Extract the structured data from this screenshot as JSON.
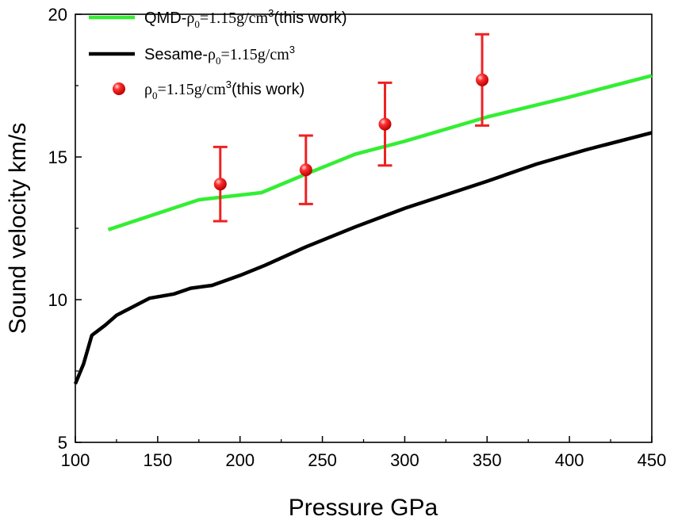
{
  "chart_data": {
    "type": "line",
    "xlabel": "Pressure GPa",
    "ylabel": "Sound velocity km/s",
    "xlim": [
      100,
      450
    ],
    "ylim": [
      5,
      20
    ],
    "x_ticks": [
      100,
      150,
      200,
      250,
      300,
      350,
      400,
      450
    ],
    "y_ticks": [
      5,
      10,
      15,
      20
    ],
    "grid": false,
    "legend_position": "top-left",
    "series": [
      {
        "name": "QMD-ρ0=1.15g/cm3(this work)",
        "legend": {
          "prefix": "QMD-",
          "rho": "ρ",
          "sub": "0",
          "mid": "=1.15g/cm",
          "sup": "3",
          "suffix": "(this work)"
        },
        "color": "#33ee33",
        "kind": "line",
        "x": [
          120,
          175,
          213,
          240,
          270,
          300,
          350,
          400,
          450
        ],
        "y": [
          12.45,
          13.5,
          13.75,
          14.4,
          15.1,
          15.55,
          16.4,
          17.1,
          17.85
        ]
      },
      {
        "name": "Sesame-ρ0=1.15g/cm3",
        "legend": {
          "prefix": "Sesame-",
          "rho": "ρ",
          "sub": "0",
          "mid": "=1.15g/cm",
          "sup": "3",
          "suffix": ""
        },
        "color": "#000000",
        "kind": "line",
        "x": [
          100,
          105,
          110,
          118,
          125,
          135,
          145,
          160,
          170,
          183,
          200,
          215,
          240,
          270,
          300,
          350,
          380,
          410,
          450
        ],
        "y": [
          7.05,
          7.75,
          8.75,
          9.1,
          9.45,
          9.75,
          10.05,
          10.2,
          10.4,
          10.5,
          10.85,
          11.2,
          11.85,
          12.55,
          13.2,
          14.15,
          14.75,
          15.25,
          15.85
        ]
      },
      {
        "name": "ρ0=1.15g/cm3(this work)",
        "legend": {
          "prefix": "",
          "rho": "ρ",
          "sub": "0",
          "mid": "=1.15g/cm",
          "sup": "3",
          "suffix": "(this work)"
        },
        "color": "#ee2222",
        "kind": "scatter",
        "x": [
          188,
          240,
          288,
          347
        ],
        "y": [
          14.05,
          14.55,
          16.15,
          17.7
        ],
        "err_low": [
          12.75,
          13.35,
          14.7,
          16.1
        ],
        "err_high": [
          15.35,
          15.75,
          17.6,
          19.3
        ]
      }
    ]
  }
}
